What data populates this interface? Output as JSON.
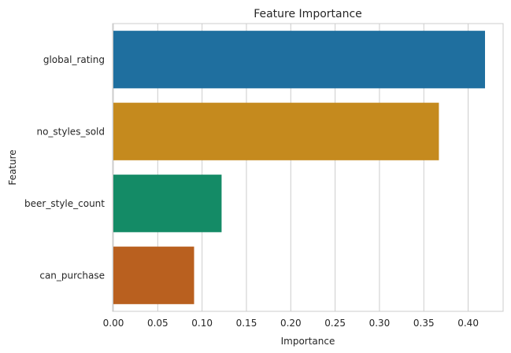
{
  "chart_data": {
    "type": "bar",
    "orientation": "horizontal",
    "title": "Feature Importance",
    "xlabel": "Importance",
    "ylabel": "Feature",
    "categories": [
      "global_rating",
      "no_styles_sold",
      "beer_style_count",
      "can_purchase"
    ],
    "values": [
      0.419,
      0.367,
      0.122,
      0.091
    ],
    "colors": [
      "#1f6f9f",
      "#c58a1e",
      "#148b66",
      "#b9601f"
    ],
    "xlim": [
      0,
      0.44
    ],
    "xticks": [
      0.0,
      0.05,
      0.1,
      0.15,
      0.2,
      0.25,
      0.3,
      0.35,
      0.4
    ],
    "xtick_labels": [
      "0.00",
      "0.05",
      "0.10",
      "0.15",
      "0.20",
      "0.25",
      "0.30",
      "0.35",
      "0.40"
    ],
    "grid": true
  }
}
